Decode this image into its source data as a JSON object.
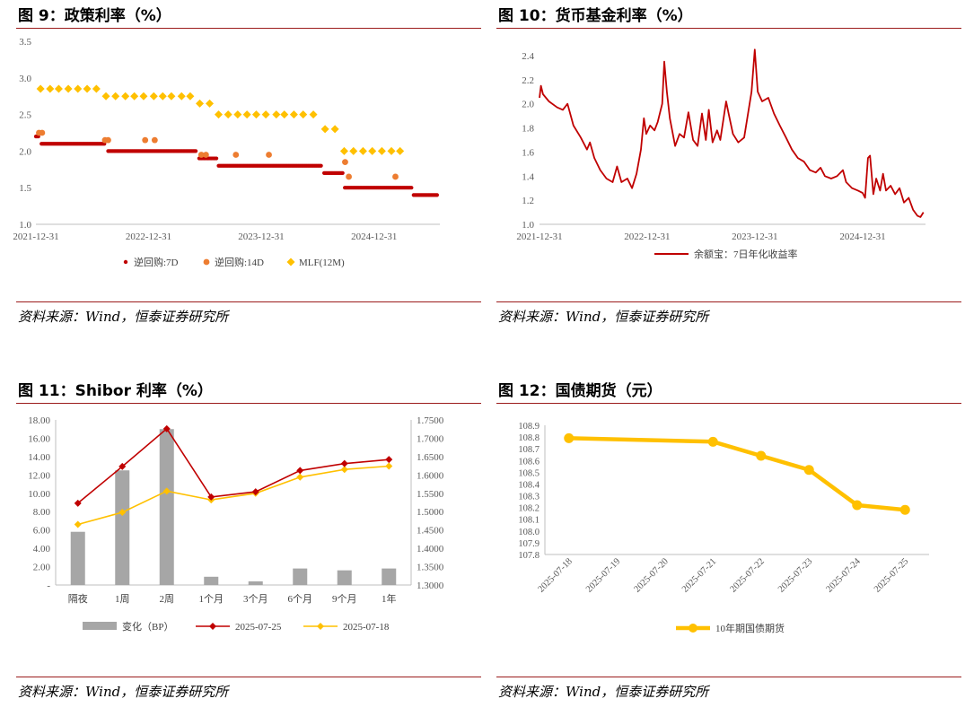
{
  "panels": [
    {
      "title": "图 9：政策利率（%）",
      "source": "资料来源：Wind，恒泰证券研究所"
    },
    {
      "title": "图 10：货币基金利率（%）",
      "source": "资料来源：Wind，恒泰证券研究所"
    },
    {
      "title": "图 11：Shibor 利率（%）",
      "source": "资料来源：Wind，恒泰证券研究所"
    },
    {
      "title": "图 12：国债期货（元）",
      "source": "资料来源：Wind，恒泰证券研究所"
    }
  ],
  "colors": {
    "dark_red": "#c00000",
    "orange": "#ed7d31",
    "gold": "#ffc000",
    "gray": "#a6a6a6",
    "rule": "#9b1c1c"
  },
  "chart_data": [
    {
      "type": "scatter",
      "title": "",
      "ylim": [
        1.0,
        3.5
      ],
      "yticks": [
        "1.0",
        "1.5",
        "2.0",
        "2.5",
        "3.0",
        "3.5"
      ],
      "xlim": [
        "2021-12-31",
        "2025-08-01"
      ],
      "xticks": [
        "2021-12-31",
        "2022-12-31",
        "2023-12-31",
        "2024-12-31"
      ],
      "legend_position": "bottom",
      "series": [
        {
          "name": "逆回购:7D",
          "marker": "circle-small",
          "color": "#c00000",
          "segments": [
            {
              "from": "2021-12-31",
              "to": "2022-01-10",
              "value": 2.2
            },
            {
              "from": "2022-01-18",
              "to": "2022-08-10",
              "value": 2.1
            },
            {
              "from": "2022-08-22",
              "to": "2023-06-05",
              "value": 2.0
            },
            {
              "from": "2023-06-13",
              "to": "2023-08-10",
              "value": 1.9
            },
            {
              "from": "2023-08-15",
              "to": "2024-07-15",
              "value": 1.8
            },
            {
              "from": "2024-07-22",
              "to": "2024-09-20",
              "value": 1.7
            },
            {
              "from": "2024-09-27",
              "to": "2025-05-01",
              "value": 1.5
            },
            {
              "from": "2025-05-08",
              "to": "2025-07-25",
              "value": 1.4
            }
          ]
        },
        {
          "name": "逆回购:14D",
          "marker": "circle",
          "color": "#ed7d31",
          "points": [
            {
              "x": "2022-01-10",
              "y": 2.25
            },
            {
              "x": "2022-01-20",
              "y": 2.25
            },
            {
              "x": "2022-08-12",
              "y": 2.15
            },
            {
              "x": "2022-08-22",
              "y": 2.15
            },
            {
              "x": "2022-12-20",
              "y": 2.15
            },
            {
              "x": "2023-01-20",
              "y": 2.15
            },
            {
              "x": "2023-06-20",
              "y": 1.95
            },
            {
              "x": "2023-07-05",
              "y": 1.95
            },
            {
              "x": "2023-10-10",
              "y": 1.95
            },
            {
              "x": "2024-01-25",
              "y": 1.95
            },
            {
              "x": "2024-09-28",
              "y": 1.85
            },
            {
              "x": "2024-10-10",
              "y": 1.65
            },
            {
              "x": "2025-03-10",
              "y": 1.65
            }
          ]
        },
        {
          "name": "MLF(12M)",
          "marker": "diamond",
          "color": "#ffc000",
          "points": [
            {
              "x": "2022-01-15",
              "y": 2.85
            },
            {
              "x": "2022-02-15",
              "y": 2.85
            },
            {
              "x": "2022-03-15",
              "y": 2.85
            },
            {
              "x": "2022-04-15",
              "y": 2.85
            },
            {
              "x": "2022-05-16",
              "y": 2.85
            },
            {
              "x": "2022-06-15",
              "y": 2.85
            },
            {
              "x": "2022-07-15",
              "y": 2.85
            },
            {
              "x": "2022-08-15",
              "y": 2.75
            },
            {
              "x": "2022-09-15",
              "y": 2.75
            },
            {
              "x": "2022-10-17",
              "y": 2.75
            },
            {
              "x": "2022-11-15",
              "y": 2.75
            },
            {
              "x": "2022-12-15",
              "y": 2.75
            },
            {
              "x": "2023-01-17",
              "y": 2.75
            },
            {
              "x": "2023-02-15",
              "y": 2.75
            },
            {
              "x": "2023-03-15",
              "y": 2.75
            },
            {
              "x": "2023-04-17",
              "y": 2.75
            },
            {
              "x": "2023-05-15",
              "y": 2.75
            },
            {
              "x": "2023-06-15",
              "y": 2.65
            },
            {
              "x": "2023-07-17",
              "y": 2.65
            },
            {
              "x": "2023-08-15",
              "y": 2.5
            },
            {
              "x": "2023-09-15",
              "y": 2.5
            },
            {
              "x": "2023-10-16",
              "y": 2.5
            },
            {
              "x": "2023-11-15",
              "y": 2.5
            },
            {
              "x": "2023-12-15",
              "y": 2.5
            },
            {
              "x": "2024-01-15",
              "y": 2.5
            },
            {
              "x": "2024-02-18",
              "y": 2.5
            },
            {
              "x": "2024-03-15",
              "y": 2.5
            },
            {
              "x": "2024-04-15",
              "y": 2.5
            },
            {
              "x": "2024-05-15",
              "y": 2.5
            },
            {
              "x": "2024-06-17",
              "y": 2.5
            },
            {
              "x": "2024-07-25",
              "y": 2.3
            },
            {
              "x": "2024-08-26",
              "y": 2.3
            },
            {
              "x": "2024-09-25",
              "y": 2.0
            },
            {
              "x": "2024-10-25",
              "y": 2.0
            },
            {
              "x": "2024-11-25",
              "y": 2.0
            },
            {
              "x": "2024-12-25",
              "y": 2.0
            },
            {
              "x": "2025-01-25",
              "y": 2.0
            },
            {
              "x": "2025-02-25",
              "y": 2.0
            },
            {
              "x": "2025-03-25",
              "y": 2.0
            }
          ]
        }
      ]
    },
    {
      "type": "line",
      "title": "",
      "ylim": [
        1.0,
        2.4
      ],
      "yticks": [
        "1.0",
        "1.2",
        "1.4",
        "1.6",
        "1.8",
        "2.0",
        "2.2",
        "2.4"
      ],
      "xlim": [
        "2021-12-31",
        "2025-08-01"
      ],
      "xticks": [
        "2021-12-31",
        "2022-12-31",
        "2023-12-31",
        "2024-12-31"
      ],
      "legend_position": "bottom",
      "series": [
        {
          "name": "余额宝：7日年化收益率",
          "color": "#c00000",
          "points": [
            {
              "x": "2021-12-31",
              "y": 2.05
            },
            {
              "x": "2022-01-05",
              "y": 2.15
            },
            {
              "x": "2022-01-12",
              "y": 2.08
            },
            {
              "x": "2022-02-01",
              "y": 2.02
            },
            {
              "x": "2022-03-01",
              "y": 1.97
            },
            {
              "x": "2022-03-20",
              "y": 1.95
            },
            {
              "x": "2022-04-05",
              "y": 2.0
            },
            {
              "x": "2022-04-25",
              "y": 1.82
            },
            {
              "x": "2022-05-20",
              "y": 1.72
            },
            {
              "x": "2022-06-10",
              "y": 1.62
            },
            {
              "x": "2022-06-20",
              "y": 1.68
            },
            {
              "x": "2022-07-05",
              "y": 1.55
            },
            {
              "x": "2022-07-25",
              "y": 1.45
            },
            {
              "x": "2022-08-15",
              "y": 1.38
            },
            {
              "x": "2022-09-05",
              "y": 1.35
            },
            {
              "x": "2022-09-20",
              "y": 1.48
            },
            {
              "x": "2022-10-05",
              "y": 1.35
            },
            {
              "x": "2022-10-25",
              "y": 1.38
            },
            {
              "x": "2022-11-10",
              "y": 1.3
            },
            {
              "x": "2022-11-25",
              "y": 1.42
            },
            {
              "x": "2022-12-10",
              "y": 1.62
            },
            {
              "x": "2022-12-20",
              "y": 1.88
            },
            {
              "x": "2022-12-28",
              "y": 1.75
            },
            {
              "x": "2023-01-10",
              "y": 1.82
            },
            {
              "x": "2023-01-25",
              "y": 1.78
            },
            {
              "x": "2023-02-05",
              "y": 1.85
            },
            {
              "x": "2023-02-20",
              "y": 2.0
            },
            {
              "x": "2023-02-27",
              "y": 2.35
            },
            {
              "x": "2023-03-08",
              "y": 2.1
            },
            {
              "x": "2023-03-18",
              "y": 1.88
            },
            {
              "x": "2023-04-05",
              "y": 1.65
            },
            {
              "x": "2023-04-20",
              "y": 1.75
            },
            {
              "x": "2023-05-05",
              "y": 1.72
            },
            {
              "x": "2023-05-20",
              "y": 1.93
            },
            {
              "x": "2023-06-05",
              "y": 1.7
            },
            {
              "x": "2023-06-20",
              "y": 1.65
            },
            {
              "x": "2023-07-05",
              "y": 1.92
            },
            {
              "x": "2023-07-18",
              "y": 1.7
            },
            {
              "x": "2023-07-28",
              "y": 1.95
            },
            {
              "x": "2023-08-10",
              "y": 1.68
            },
            {
              "x": "2023-08-25",
              "y": 1.78
            },
            {
              "x": "2023-09-05",
              "y": 1.7
            },
            {
              "x": "2023-09-25",
              "y": 2.02
            },
            {
              "x": "2023-10-05",
              "y": 1.9
            },
            {
              "x": "2023-10-18",
              "y": 1.75
            },
            {
              "x": "2023-11-05",
              "y": 1.68
            },
            {
              "x": "2023-11-25",
              "y": 1.72
            },
            {
              "x": "2023-12-20",
              "y": 2.1
            },
            {
              "x": "2023-12-31",
              "y": 2.45
            },
            {
              "x": "2024-01-10",
              "y": 2.1
            },
            {
              "x": "2024-01-25",
              "y": 2.02
            },
            {
              "x": "2024-02-15",
              "y": 2.05
            },
            {
              "x": "2024-03-05",
              "y": 1.92
            },
            {
              "x": "2024-03-25",
              "y": 1.82
            },
            {
              "x": "2024-04-15",
              "y": 1.72
            },
            {
              "x": "2024-05-05",
              "y": 1.62
            },
            {
              "x": "2024-05-25",
              "y": 1.55
            },
            {
              "x": "2024-06-15",
              "y": 1.52
            },
            {
              "x": "2024-07-05",
              "y": 1.45
            },
            {
              "x": "2024-07-25",
              "y": 1.43
            },
            {
              "x": "2024-08-10",
              "y": 1.47
            },
            {
              "x": "2024-08-25",
              "y": 1.4
            },
            {
              "x": "2024-09-15",
              "y": 1.38
            },
            {
              "x": "2024-10-05",
              "y": 1.4
            },
            {
              "x": "2024-10-25",
              "y": 1.45
            },
            {
              "x": "2024-11-05",
              "y": 1.35
            },
            {
              "x": "2024-11-25",
              "y": 1.3
            },
            {
              "x": "2024-12-15",
              "y": 1.28
            },
            {
              "x": "2024-12-31",
              "y": 1.26
            },
            {
              "x": "2025-01-08",
              "y": 1.22
            },
            {
              "x": "2025-01-18",
              "y": 1.55
            },
            {
              "x": "2025-01-25",
              "y": 1.57
            },
            {
              "x": "2025-02-05",
              "y": 1.25
            },
            {
              "x": "2025-02-15",
              "y": 1.38
            },
            {
              "x": "2025-02-28",
              "y": 1.28
            },
            {
              "x": "2025-03-10",
              "y": 1.42
            },
            {
              "x": "2025-03-20",
              "y": 1.28
            },
            {
              "x": "2025-04-05",
              "y": 1.32
            },
            {
              "x": "2025-04-20",
              "y": 1.25
            },
            {
              "x": "2025-05-05",
              "y": 1.3
            },
            {
              "x": "2025-05-20",
              "y": 1.18
            },
            {
              "x": "2025-06-05",
              "y": 1.22
            },
            {
              "x": "2025-06-20",
              "y": 1.12
            },
            {
              "x": "2025-07-05",
              "y": 1.07
            },
            {
              "x": "2025-07-15",
              "y": 1.06
            },
            {
              "x": "2025-07-25",
              "y": 1.1
            }
          ]
        }
      ]
    },
    {
      "type": "bar",
      "title": "",
      "categories": [
        "隔夜",
        "1周",
        "2周",
        "1个月",
        "3个月",
        "6个月",
        "9个月",
        "1年"
      ],
      "ylim": [
        0,
        18
      ],
      "yticks": [
        "-",
        "2.00",
        "4.00",
        "6.00",
        "8.00",
        "10.00",
        "12.00",
        "14.00",
        "16.00",
        "18.00"
      ],
      "y2lim": [
        1.3,
        1.75
      ],
      "y2ticks": [
        "1.3000",
        "1.3500",
        "1.4000",
        "1.4500",
        "1.5000",
        "1.5500",
        "1.6000",
        "1.6500",
        "1.7000",
        "1.7500"
      ],
      "legend_position": "bottom",
      "series": [
        {
          "name": "变化（BP）",
          "axis": "left",
          "kind": "bar",
          "color": "#a6a6a6",
          "values": [
            5.8,
            12.5,
            17.0,
            0.9,
            0.4,
            1.8,
            1.6,
            1.8
          ]
        },
        {
          "name": "2025-07-25",
          "axis": "right",
          "kind": "line",
          "color": "#c00000",
          "marker": "diamond",
          "values": [
            1.523,
            1.623,
            1.726,
            1.54,
            1.554,
            1.612,
            1.631,
            1.642
          ]
        },
        {
          "name": "2025-07-18",
          "axis": "right",
          "kind": "line",
          "color": "#ffc000",
          "marker": "diamond",
          "values": [
            1.465,
            1.498,
            1.556,
            1.532,
            1.55,
            1.594,
            1.615,
            1.624
          ]
        }
      ]
    },
    {
      "type": "line",
      "title": "",
      "categories": [
        "2025-07-18",
        "2025-07-19",
        "2025-07-20",
        "2025-07-21",
        "2025-07-22",
        "2025-07-23",
        "2025-07-24",
        "2025-07-25"
      ],
      "ylim": [
        107.8,
        108.9
      ],
      "yticks": [
        "107.8",
        "107.9",
        "108.0",
        "108.1",
        "108.2",
        "108.3",
        "108.4",
        "108.5",
        "108.6",
        "108.7",
        "108.8",
        "108.9"
      ],
      "legend_position": "bottom",
      "series": [
        {
          "name": "10年期国债期货",
          "color": "#ffc000",
          "marker": "circle",
          "points": [
            {
              "x": "2025-07-18",
              "y": 108.79
            },
            {
              "x": "2025-07-21",
              "y": 108.76
            },
            {
              "x": "2025-07-22",
              "y": 108.64
            },
            {
              "x": "2025-07-23",
              "y": 108.52
            },
            {
              "x": "2025-07-24",
              "y": 108.22
            },
            {
              "x": "2025-07-25",
              "y": 108.18
            }
          ]
        }
      ]
    }
  ]
}
